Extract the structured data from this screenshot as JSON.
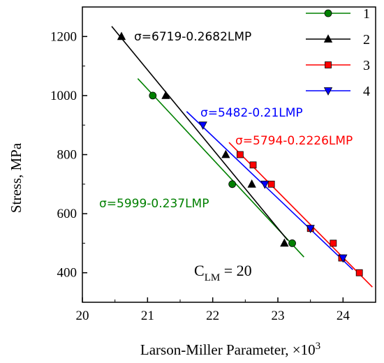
{
  "chart_data": {
    "type": "scatter",
    "title": "",
    "xlabel": "Larson-Miller Parameter, ×10",
    "xlabel_exponent": "3",
    "ylabel": "Stress, MPa",
    "xlim": [
      20,
      24.5
    ],
    "ylim": [
      300,
      1300
    ],
    "x_ticks": [
      20,
      21,
      22,
      23,
      24
    ],
    "y_ticks": [
      400,
      600,
      800,
      1000,
      1200
    ],
    "grid": false,
    "legend_position": "top-right",
    "constant_label": {
      "main": "C",
      "sub": "LM",
      "rest": " = 20"
    },
    "series": [
      {
        "name": "1",
        "color": "#008000",
        "marker": "circle",
        "points": [
          [
            21.08,
            1000
          ],
          [
            22.3,
            700
          ],
          [
            23.22,
            500
          ]
        ],
        "fit": {
          "label": "σ=5999-0.237LMP",
          "x_range": [
            20.85,
            23.4
          ]
        }
      },
      {
        "name": "2",
        "color": "#000000",
        "marker": "triangle-up",
        "points": [
          [
            20.6,
            1200
          ],
          [
            21.28,
            1000
          ],
          [
            22.2,
            800
          ],
          [
            22.6,
            700
          ],
          [
            23.1,
            500
          ]
        ],
        "fit": {
          "label": "σ=6719-0.2682LMP",
          "x_range": [
            20.45,
            23.15
          ]
        }
      },
      {
        "name": "3",
        "color": "#ff0000",
        "marker": "square",
        "points": [
          [
            22.42,
            800
          ],
          [
            22.62,
            765
          ],
          [
            22.9,
            700
          ],
          [
            23.5,
            550
          ],
          [
            23.85,
            500
          ],
          [
            23.98,
            450
          ],
          [
            24.25,
            400
          ]
        ],
        "fit": {
          "label": "σ=5794-0.2226LMP",
          "x_range": [
            22.25,
            24.45
          ]
        }
      },
      {
        "name": "4",
        "color": "#0000ff",
        "marker": "triangle-down",
        "points": [
          [
            21.85,
            900
          ],
          [
            22.8,
            700
          ],
          [
            23.5,
            550
          ],
          [
            24.0,
            450
          ]
        ],
        "fit": {
          "label": "σ=5482-0.21LMP",
          "x_range": [
            21.6,
            24.15
          ]
        }
      }
    ]
  }
}
